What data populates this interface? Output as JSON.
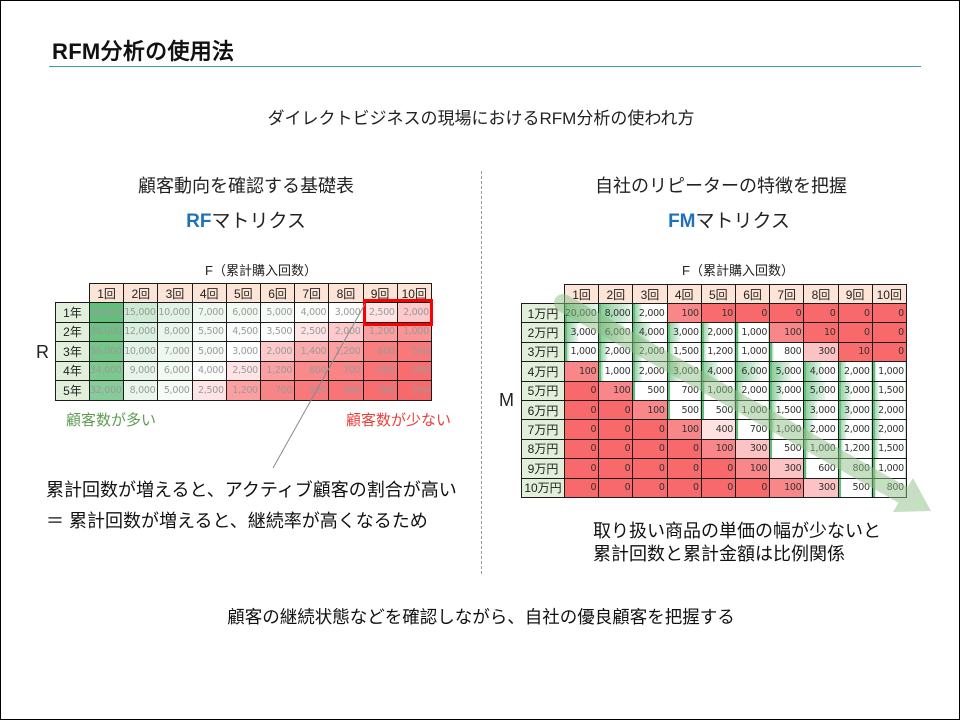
{
  "title": "RFM分析の使用法",
  "subtitle": "ダイレクトビジネスの現場におけるRFM分析の使われ方",
  "left": {
    "heading": "顧客動向を確認する基礎表",
    "matrix_title_accent": "RF",
    "matrix_title_rest": "マトリクス",
    "x_axis_label": "F（累計購入回数）",
    "y_axis_label": "R",
    "legend_many": "顧客数が多い",
    "legend_few": "顧客数が少ない",
    "note_line1": "累計回数が増えると、アクティブ顧客の割合が高い",
    "note_line2": "＝ 累計回数が増えると、継続率が高くなるため"
  },
  "right": {
    "heading": "自社のリピーターの特徴を把握",
    "matrix_title_accent": "FM",
    "matrix_title_rest": "マトリクス",
    "x_axis_label": "F（累計購入回数）",
    "y_axis_label": "M",
    "note_line1": "取り扱い商品の単価の幅が少ないと",
    "note_line2": "累計回数と累計金額は比例関係"
  },
  "footer": "顧客の継続状態などを確認しながら、自社の優良顧客を把握する",
  "colors": {
    "accent_blue": "#1f72b8",
    "title_rule": "#3a9fb0",
    "legend_green": "#5f9c52",
    "legend_red": "#e8423a",
    "header_fill": "#fce4d6",
    "row_label_fill": "#e2efda",
    "scale_min": "#f8696b",
    "scale_mid": "#ffffff",
    "scale_max": "#63be7b",
    "highlight_box": "#ff0000",
    "trend_arrow": "#8fbf86",
    "rf_value_text": "#9a9a9a",
    "fm_value_text": "#333333"
  },
  "matrix_style": {
    "rf": {
      "mode": "three_color",
      "min": 200,
      "mid": 3000,
      "max": 40000
    },
    "fm": {
      "mode": "red_scale_with_bars",
      "mid": 500,
      "bar_max": 8000
    }
  },
  "chart_data": [
    {
      "type": "heatmap",
      "title": "RFマトリクス",
      "xlabel": "F（累計購入回数）",
      "ylabel": "R",
      "x": [
        "1回",
        "2回",
        "3回",
        "4回",
        "5回",
        "6回",
        "7回",
        "8回",
        "9回",
        "10回"
      ],
      "y": [
        "1年",
        "2年",
        "3年",
        "4年",
        "5年"
      ],
      "values": [
        [
          40000,
          15000,
          10000,
          7000,
          6000,
          5000,
          4000,
          3000,
          2500,
          2000
        ],
        [
          38000,
          12000,
          8000,
          5500,
          4500,
          3500,
          2500,
          2000,
          1200,
          1000
        ],
        [
          36000,
          10000,
          7000,
          5000,
          3000,
          2000,
          1400,
          1200,
          600,
          500
        ],
        [
          34000,
          9000,
          6000,
          4000,
          2500,
          1200,
          800,
          700,
          400,
          300
        ],
        [
          32000,
          8000,
          5000,
          2500,
          1200,
          700,
          500,
          400,
          300,
          200
        ]
      ],
      "annotations": [
        "顧客数が多い",
        "顧客数が少ない",
        "highlight: 1年 × 9回–10回"
      ]
    },
    {
      "type": "heatmap",
      "title": "FMマトリクス",
      "xlabel": "F（累計購入回数）",
      "ylabel": "M",
      "x": [
        "1回",
        "2回",
        "3回",
        "4回",
        "5回",
        "6回",
        "7回",
        "8回",
        "9回",
        "10回"
      ],
      "y": [
        "1万円",
        "2万円",
        "3万円",
        "4万円",
        "5万円",
        "6万円",
        "7万円",
        "8万円",
        "9万円",
        "10万円"
      ],
      "values": [
        [
          20000,
          8000,
          2000,
          100,
          10,
          0,
          0,
          0,
          0,
          0
        ],
        [
          3000,
          6000,
          4000,
          3000,
          2000,
          1000,
          100,
          10,
          0,
          0
        ],
        [
          1000,
          2000,
          2000,
          1500,
          1200,
          1000,
          800,
          300,
          10,
          0
        ],
        [
          100,
          1000,
          2000,
          3000,
          4000,
          6000,
          5000,
          4000,
          2000,
          1000
        ],
        [
          0,
          100,
          500,
          700,
          1000,
          2000,
          3000,
          5000,
          3000,
          1500
        ],
        [
          0,
          0,
          100,
          500,
          500,
          1000,
          1500,
          3000,
          3000,
          2000
        ],
        [
          0,
          0,
          0,
          100,
          400,
          700,
          1000,
          2000,
          2000,
          2000
        ],
        [
          0,
          0,
          0,
          0,
          100,
          300,
          500,
          1000,
          1200,
          1500
        ],
        [
          0,
          0,
          0,
          0,
          0,
          100,
          300,
          600,
          800,
          1000
        ],
        [
          0,
          0,
          0,
          0,
          0,
          0,
          100,
          300,
          500,
          800
        ]
      ],
      "annotations": [
        "diagonal trend arrow from 1万円×1回 toward 10万円×10回"
      ]
    }
  ]
}
